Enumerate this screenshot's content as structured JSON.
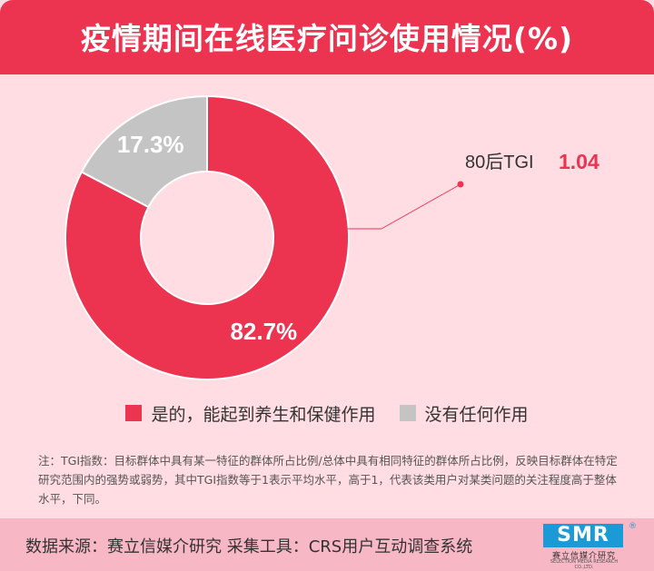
{
  "title": "疫情期间在线医疗问诊使用情况(%)",
  "chart_data": {
    "type": "pie",
    "donut": true,
    "categories": [
      "是的，能起到养生和保健作用",
      "没有任何作用"
    ],
    "values": [
      82.7,
      17.3
    ],
    "value_labels": [
      "82.7%",
      "17.3%"
    ],
    "colors": [
      "#ec3350",
      "#c4c4c4"
    ],
    "legend_position": "bottom"
  },
  "annotation": {
    "label": "80后TGI",
    "value": "1.04"
  },
  "note": "注：TGI指数：目标群体中具有某一特征的群体所占比例/总体中具有相同特征的群体所占比例，反映目标群体在特定研究范围内的强势或弱势，其中TGI指数等于1表示平均水平，高于1，代表该类用户对某类问题的关注程度高于整体水平，下同。",
  "footer": {
    "source": "数据来源：赛立信媒介研究  采集工具：CRS用户互动调查系统",
    "logo_text": "SMR",
    "logo_cn": "赛立信媒介研究",
    "logo_en": "SELECTION MEDIA RESEARCH CO.,LTD.",
    "logo_mark": "®"
  }
}
